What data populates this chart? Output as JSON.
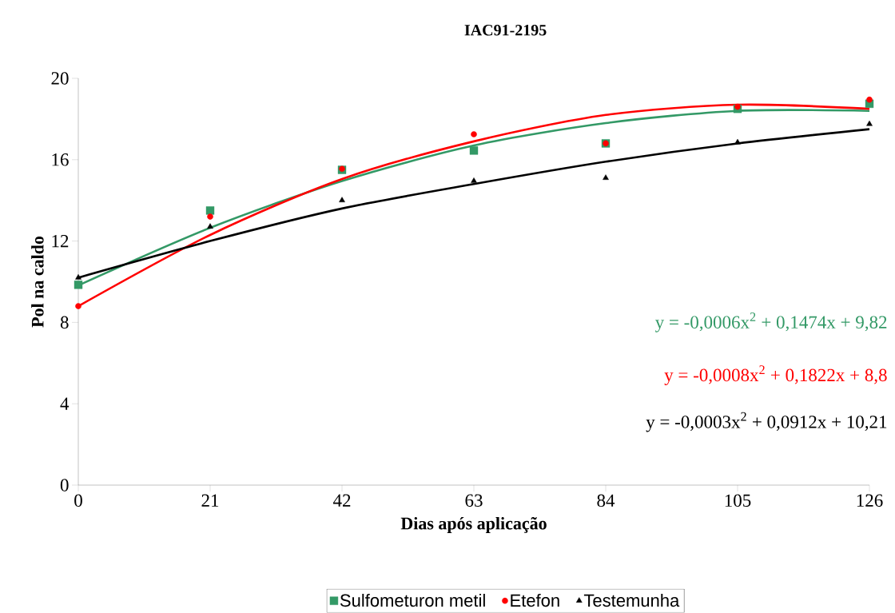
{
  "chart_data": {
    "type": "scatter",
    "title": "IAC91-2195",
    "xlabel": "Dias após aplicação",
    "ylabel": "Pol na caldo",
    "x": [
      0,
      21,
      42,
      63,
      84,
      105,
      126
    ],
    "series": [
      {
        "name": "Sulfometuron metil",
        "color": "#339966",
        "marker": "square",
        "values": [
          9.85,
          13.5,
          15.5,
          16.45,
          16.8,
          18.5,
          18.75
        ]
      },
      {
        "name": "Etefon",
        "color": "#ff0000",
        "marker": "circle",
        "values": [
          8.8,
          13.2,
          15.55,
          17.25,
          16.8,
          18.6,
          18.95
        ]
      },
      {
        "name": "Testemunha",
        "color": "#000000",
        "marker": "triangle",
        "values": [
          10.2,
          12.7,
          14.0,
          14.95,
          15.1,
          16.85,
          17.75
        ]
      },
      {
        "type": "line",
        "color": "#339966",
        "marker": "none",
        "x": [
          0,
          21,
          42,
          63,
          84,
          105,
          126
        ],
        "values": [
          9.82,
          12.65,
          14.95,
          16.7,
          17.8,
          18.4,
          18.4
        ]
      },
      {
        "type": "line",
        "color": "#ff0000",
        "marker": "none",
        "x": [
          0,
          21,
          42,
          63,
          84,
          105,
          126
        ],
        "values": [
          8.8,
          12.3,
          15.05,
          16.9,
          18.2,
          18.7,
          18.5
        ]
      },
      {
        "type": "line",
        "color": "#000000",
        "marker": "none",
        "x": [
          0,
          21,
          42,
          63,
          84,
          105,
          126
        ],
        "values": [
          10.2,
          12.0,
          13.6,
          14.8,
          15.9,
          16.8,
          17.5
        ]
      }
    ],
    "annotations": [
      "y = -0,0006x$^{2}$ + 0,1474x + 9,82",
      "y = -0,0008x$^{2}$ + 0,1822x + 8,8",
      "y = -0,0003x$^{2}$ + 0,0912x + 10,21"
    ],
    "xlim": [
      0,
      126
    ],
    "xticks": [
      0,
      21,
      42,
      63,
      84,
      105,
      126
    ],
    "ylim": [
      0,
      20
    ],
    "yticks": [
      0,
      4,
      8,
      12,
      16,
      20
    ],
    "grid": false,
    "legend": "bottom"
  }
}
